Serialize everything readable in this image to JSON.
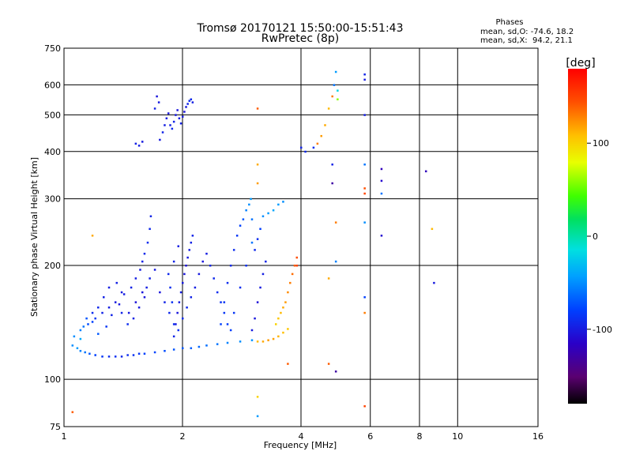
{
  "title": "Tromsø 20170121 15:50:00-15:51:43",
  "subtitle": "RwPretec (8p)",
  "stats": {
    "heading": "Phases",
    "line1": "mean, sd,O: -74.6, 18.2",
    "line2": "mean, sd,X:  94.2, 21.1"
  },
  "colorbar": {
    "label": "[deg]",
    "ticks": [
      "100",
      "0",
      "-100"
    ],
    "range": [
      -180,
      180
    ],
    "tick_values": [
      100,
      0,
      -100
    ]
  },
  "chart_data": {
    "type": "scatter",
    "xlabel": "Frequency [MHz]",
    "ylabel": "Stationary phase Virtual Height [km]",
    "xscale": "log",
    "yscale": "log",
    "xlim": [
      1,
      16
    ],
    "ylim": [
      75,
      750
    ],
    "x_ticks": [
      1,
      2,
      4,
      6,
      8,
      10,
      16
    ],
    "x_tick_labels": [
      "1",
      "2",
      "4",
      "6",
      "8",
      "10",
      "16"
    ],
    "y_ticks": [
      75,
      100,
      200,
      300,
      400,
      500,
      600,
      750
    ],
    "y_tick_labels": [
      "75",
      "100",
      "200",
      "300",
      "400",
      "500",
      "600",
      "750"
    ],
    "grid": true,
    "color_variable": "phase [deg]",
    "points": [
      [
        1.05,
        123,
        -50
      ],
      [
        1.08,
        121,
        -45
      ],
      [
        1.1,
        119,
        -55
      ],
      [
        1.13,
        118,
        -60
      ],
      [
        1.16,
        117,
        -70
      ],
      [
        1.2,
        116,
        -80
      ],
      [
        1.25,
        115,
        -85
      ],
      [
        1.3,
        115,
        -90
      ],
      [
        1.35,
        115,
        -88
      ],
      [
        1.4,
        115,
        -92
      ],
      [
        1.45,
        116,
        -90
      ],
      [
        1.5,
        116,
        -88
      ],
      [
        1.55,
        117,
        -85
      ],
      [
        1.6,
        117,
        -80
      ],
      [
        1.7,
        118,
        -78
      ],
      [
        1.8,
        119,
        -75
      ],
      [
        1.9,
        120,
        -72
      ],
      [
        2.0,
        121,
        -70
      ],
      [
        2.1,
        121,
        -68
      ],
      [
        2.2,
        122,
        -65
      ],
      [
        2.3,
        123,
        -62
      ],
      [
        2.45,
        124,
        -60
      ],
      [
        2.6,
        125,
        -55
      ],
      [
        2.8,
        126,
        -50
      ],
      [
        3.0,
        127,
        -48
      ],
      [
        3.1,
        126,
        110
      ],
      [
        3.2,
        126,
        115
      ],
      [
        3.3,
        127,
        120
      ],
      [
        3.4,
        128,
        118
      ],
      [
        3.5,
        130,
        112
      ],
      [
        3.6,
        133,
        108
      ],
      [
        3.7,
        136,
        105
      ],
      [
        1.06,
        130,
        -50
      ],
      [
        1.1,
        135,
        -55
      ],
      [
        1.15,
        140,
        -75
      ],
      [
        1.2,
        145,
        -85
      ],
      [
        1.25,
        150,
        -95
      ],
      [
        1.3,
        155,
        -98
      ],
      [
        1.35,
        160,
        -100
      ],
      [
        1.4,
        150,
        -95
      ],
      [
        1.45,
        140,
        -90
      ],
      [
        1.5,
        145,
        -96
      ],
      [
        1.55,
        155,
        -100
      ],
      [
        1.6,
        165,
        -102
      ],
      [
        1.62,
        175,
        -98
      ],
      [
        1.65,
        185,
        -96
      ],
      [
        1.7,
        195,
        -100
      ],
      [
        1.75,
        170,
        -102
      ],
      [
        1.8,
        160,
        -95
      ],
      [
        1.85,
        150,
        -92
      ],
      [
        1.9,
        140,
        -90
      ],
      [
        1.95,
        135,
        -88
      ],
      [
        2.0,
        145,
        -90
      ],
      [
        2.05,
        155,
        -92
      ],
      [
        2.1,
        165,
        -95
      ],
      [
        2.15,
        175,
        -98
      ],
      [
        2.2,
        190,
        -100
      ],
      [
        2.25,
        205,
        -102
      ],
      [
        2.3,
        215,
        -98
      ],
      [
        2.35,
        200,
        -95
      ],
      [
        2.4,
        185,
        -92
      ],
      [
        2.45,
        170,
        -90
      ],
      [
        2.5,
        160,
        -88
      ],
      [
        2.55,
        150,
        -85
      ],
      [
        2.6,
        140,
        -82
      ],
      [
        2.65,
        135,
        -80
      ],
      [
        2.7,
        150,
        -85
      ],
      [
        2.8,
        175,
        -90
      ],
      [
        2.9,
        200,
        -88
      ],
      [
        3.0,
        230,
        -60
      ],
      [
        1.1,
        128,
        -40
      ],
      [
        1.12,
        138,
        -60
      ],
      [
        1.18,
        142,
        -80
      ],
      [
        1.22,
        132,
        -70
      ],
      [
        1.28,
        138,
        -85
      ],
      [
        1.32,
        148,
        -95
      ],
      [
        1.38,
        158,
        -100
      ],
      [
        1.42,
        168,
        -98
      ],
      [
        1.48,
        175,
        -96
      ],
      [
        1.52,
        185,
        -98
      ],
      [
        1.56,
        195,
        -100
      ],
      [
        1.58,
        205,
        -96
      ],
      [
        1.6,
        215,
        -92
      ],
      [
        1.63,
        230,
        -90
      ],
      [
        1.65,
        250,
        -92
      ],
      [
        1.66,
        270,
        -95
      ],
      [
        1.58,
        170,
        -102
      ],
      [
        1.52,
        160,
        -104
      ],
      [
        1.46,
        150,
        -100
      ],
      [
        1.4,
        170,
        -99
      ],
      [
        1.36,
        180,
        -96
      ],
      [
        1.3,
        175,
        -98
      ],
      [
        1.26,
        165,
        -96
      ],
      [
        1.22,
        155,
        -93
      ],
      [
        1.18,
        150,
        -90
      ],
      [
        1.14,
        145,
        -72
      ],
      [
        1.9,
        130,
        -95
      ],
      [
        1.92,
        140,
        -100
      ],
      [
        1.94,
        150,
        -102
      ],
      [
        1.96,
        160,
        -100
      ],
      [
        1.98,
        170,
        -98
      ],
      [
        2.0,
        180,
        -100
      ],
      [
        2.02,
        190,
        -102
      ],
      [
        2.04,
        200,
        -104
      ],
      [
        2.06,
        210,
        -100
      ],
      [
        2.08,
        220,
        -98
      ],
      [
        2.1,
        230,
        -96
      ],
      [
        2.12,
        240,
        -95
      ],
      [
        1.88,
        160,
        -88
      ],
      [
        1.86,
        175,
        -90
      ],
      [
        1.84,
        190,
        -92
      ],
      [
        1.9,
        205,
        -95
      ],
      [
        1.95,
        225,
        -98
      ],
      [
        2.5,
        140,
        -80
      ],
      [
        2.55,
        160,
        -85
      ],
      [
        2.6,
        180,
        -90
      ],
      [
        2.65,
        200,
        -92
      ],
      [
        2.7,
        220,
        -90
      ],
      [
        2.75,
        240,
        -85
      ],
      [
        2.8,
        255,
        -80
      ],
      [
        2.85,
        265,
        -70
      ],
      [
        2.9,
        280,
        -55
      ],
      [
        2.95,
        290,
        -50
      ],
      [
        2.98,
        300,
        -45
      ],
      [
        3.0,
        135,
        -100
      ],
      [
        3.05,
        145,
        -102
      ],
      [
        3.1,
        160,
        -105
      ],
      [
        3.15,
        175,
        -100
      ],
      [
        3.2,
        190,
        -98
      ],
      [
        3.25,
        205,
        -95
      ],
      [
        3.05,
        220,
        -92
      ],
      [
        3.1,
        235,
        -90
      ],
      [
        3.15,
        250,
        -80
      ],
      [
        3.0,
        265,
        -60
      ],
      [
        3.2,
        270,
        -50
      ],
      [
        3.3,
        275,
        -45
      ],
      [
        3.4,
        280,
        -40
      ],
      [
        3.5,
        290,
        -45
      ],
      [
        3.6,
        295,
        -50
      ],
      [
        3.45,
        140,
        100
      ],
      [
        3.5,
        145,
        105
      ],
      [
        3.55,
        150,
        110
      ],
      [
        3.6,
        155,
        115
      ],
      [
        3.65,
        160,
        120
      ],
      [
        3.7,
        170,
        125
      ],
      [
        3.75,
        180,
        130
      ],
      [
        3.8,
        190,
        135
      ],
      [
        3.85,
        200,
        140
      ],
      [
        3.9,
        210,
        145
      ],
      [
        1.75,
        430,
        -100
      ],
      [
        1.78,
        450,
        -95
      ],
      [
        1.8,
        470,
        -98
      ],
      [
        1.82,
        490,
        -100
      ],
      [
        1.84,
        505,
        -102
      ],
      [
        1.86,
        470,
        -96
      ],
      [
        1.88,
        460,
        -92
      ],
      [
        1.9,
        480,
        -95
      ],
      [
        1.92,
        500,
        -100
      ],
      [
        1.94,
        515,
        -102
      ],
      [
        1.96,
        490,
        -98
      ],
      [
        1.98,
        475,
        -96
      ],
      [
        2.0,
        495,
        -100
      ],
      [
        2.02,
        510,
        -104
      ],
      [
        2.04,
        525,
        -100
      ],
      [
        2.06,
        535,
        -95
      ],
      [
        2.08,
        545,
        -90
      ],
      [
        2.1,
        550,
        -92
      ],
      [
        2.12,
        540,
        -98
      ],
      [
        1.74,
        540,
        -100
      ],
      [
        1.72,
        560,
        -102
      ],
      [
        1.7,
        520,
        -96
      ],
      [
        1.52,
        420,
        -96
      ],
      [
        1.55,
        415,
        -98
      ],
      [
        1.58,
        425,
        -100
      ],
      [
        1.05,
        82,
        140
      ],
      [
        1.18,
        240,
        115
      ],
      [
        3.1,
        90,
        100
      ],
      [
        3.1,
        80,
        -45
      ],
      [
        3.1,
        330,
        120
      ],
      [
        3.1,
        370,
        115
      ],
      [
        3.1,
        520,
        140
      ],
      [
        3.7,
        110,
        140
      ],
      [
        3.9,
        200,
        150
      ],
      [
        4.0,
        410,
        -95
      ],
      [
        4.1,
        400,
        -92
      ],
      [
        4.3,
        410,
        -90
      ],
      [
        4.4,
        420,
        130
      ],
      [
        4.5,
        440,
        120
      ],
      [
        4.6,
        470,
        115
      ],
      [
        4.7,
        520,
        110
      ],
      [
        4.8,
        560,
        130
      ],
      [
        4.85,
        600,
        -60
      ],
      [
        4.9,
        650,
        -45
      ],
      [
        4.95,
        580,
        -20
      ],
      [
        4.95,
        550,
        60
      ],
      [
        4.7,
        110,
        140
      ],
      [
        4.7,
        185,
        115
      ],
      [
        4.9,
        105,
        -130
      ],
      [
        4.8,
        370,
        -95
      ],
      [
        4.8,
        330,
        -130
      ],
      [
        4.9,
        260,
        130
      ],
      [
        4.9,
        205,
        -55
      ],
      [
        5.8,
        620,
        -100
      ],
      [
        5.8,
        640,
        -95
      ],
      [
        5.8,
        500,
        -98
      ],
      [
        5.8,
        370,
        -60
      ],
      [
        5.8,
        320,
        145
      ],
      [
        5.8,
        310,
        150
      ],
      [
        5.8,
        260,
        -50
      ],
      [
        5.8,
        165,
        -80
      ],
      [
        5.8,
        150,
        130
      ],
      [
        5.8,
        85,
        150
      ],
      [
        6.4,
        360,
        -120
      ],
      [
        6.4,
        335,
        -110
      ],
      [
        6.4,
        310,
        -60
      ],
      [
        6.4,
        240,
        -110
      ],
      [
        8.3,
        355,
        -120
      ],
      [
        8.6,
        250,
        110
      ],
      [
        8.7,
        180,
        -100
      ]
    ]
  }
}
